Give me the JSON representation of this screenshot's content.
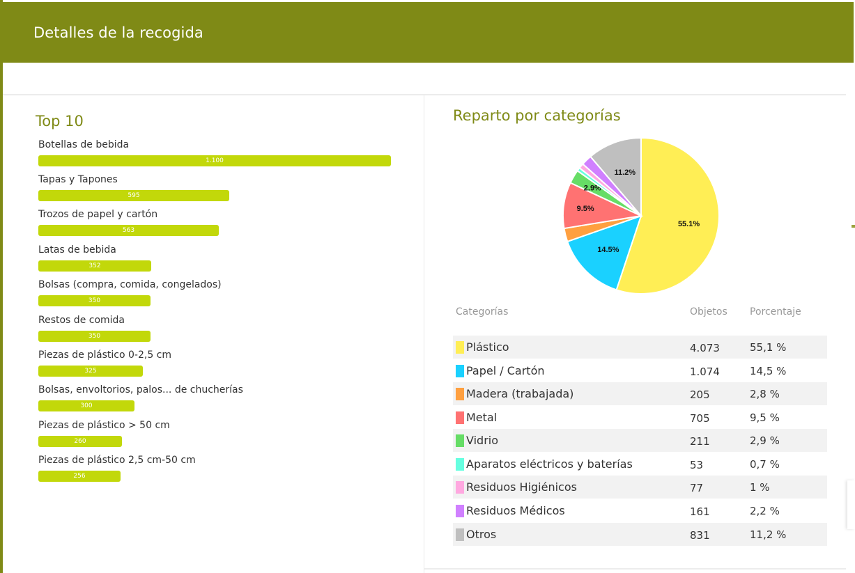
{
  "header": {
    "title": "Detalles de la recogida"
  },
  "top10": {
    "title": "Top 10"
  },
  "categories_section": {
    "title": "Reparto por categorías"
  },
  "table": {
    "headers": [
      "Categorías",
      "Objetos",
      "Porcentaje"
    ],
    "rows": [
      {
        "category": "Plástico",
        "objects": "4.073",
        "percent": "55,1 %",
        "color": "#ffee55"
      },
      {
        "category": "Papel / Cartón",
        "objects": "1.074",
        "percent": "14,5 %",
        "color": "#1ad1ff"
      },
      {
        "category": "Madera (trabajada)",
        "objects": "205",
        "percent": "2,8 %",
        "color": "#ffa040"
      },
      {
        "category": "Metal",
        "objects": "705",
        "percent": "9,5 %",
        "color": "#ff7272"
      },
      {
        "category": "Vidrio",
        "objects": "211",
        "percent": "2,9 %",
        "color": "#66dd66"
      },
      {
        "category": "Aparatos eléctricos y baterías",
        "objects": "53",
        "percent": "0,7 %",
        "color": "#66ffe0"
      },
      {
        "category": "Residuos Higiénicos",
        "objects": "77",
        "percent": "1 %",
        "color": "#ffa8e0"
      },
      {
        "category": "Residuos Médicos",
        "objects": "161",
        "percent": "2,2 %",
        "color": "#d080ff"
      },
      {
        "category": "Otros",
        "objects": "831",
        "percent": "11,2 %",
        "color": "#bfbfbf"
      }
    ]
  },
  "chart_data": [
    {
      "type": "bar",
      "orientation": "horizontal",
      "title": "Top 10",
      "bar_color": "#c2d80a",
      "categories": [
        "Botellas de bebida",
        "Tapas y Tapones",
        "Trozos de papel y cartón",
        "Latas de bebida",
        "Bolsas (compra, comida, congelados)",
        "Restos de comida",
        "Piezas de plástico 0-2,5 cm",
        "Bolsas, envoltorios, palos... de chucherías",
        "Piezas de plástico > 50 cm",
        "Piezas de plástico 2,5 cm-50 cm"
      ],
      "values": [
        1100,
        595,
        563,
        352,
        350,
        350,
        325,
        300,
        260,
        256
      ],
      "value_labels": [
        "1.100",
        "595",
        "563",
        "352",
        "350",
        "350",
        "325",
        "300",
        "260",
        "256"
      ]
    },
    {
      "type": "pie",
      "title": "Reparto por categorías",
      "labels": [
        "Plástico",
        "Papel / Cartón",
        "Madera (trabajada)",
        "Metal",
        "Vidrio",
        "Aparatos eléctricos y baterías",
        "Residuos Higiénicos",
        "Residuos Médicos",
        "Otros"
      ],
      "values": [
        4073,
        1074,
        205,
        705,
        211,
        53,
        77,
        161,
        831
      ],
      "slice_labels": [
        "55.1%",
        "14.5%",
        "",
        "9.5%",
        "2.9%",
        "",
        "",
        "",
        "11.2%"
      ],
      "colors": [
        "#ffee55",
        "#1ad1ff",
        "#ffa040",
        "#ff7272",
        "#66dd66",
        "#66ffe0",
        "#ffa8e0",
        "#d080ff",
        "#bfbfbf"
      ]
    }
  ]
}
